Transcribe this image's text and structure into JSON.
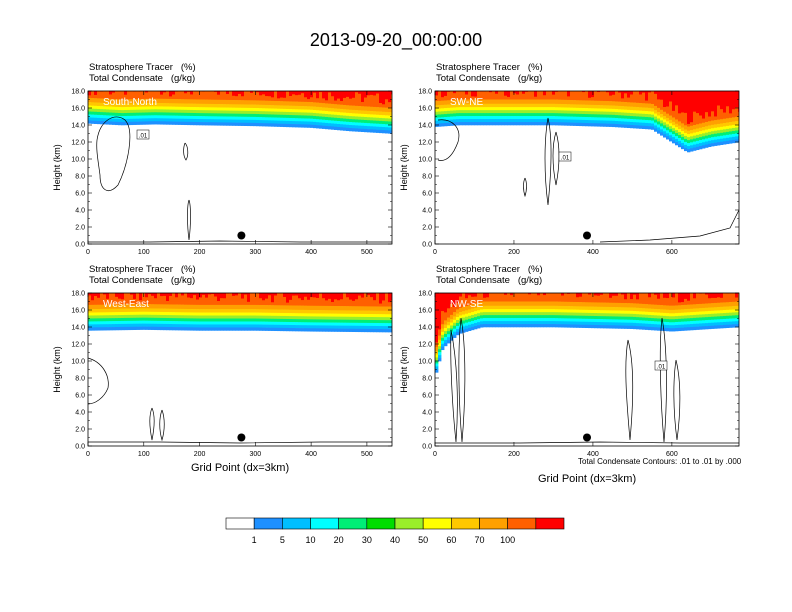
{
  "title": "2013-09-20_00:00:00",
  "colors": {
    "levels": [
      "#ffffff",
      "#1e90ff",
      "#00bfff",
      "#00ffff",
      "#00ee76",
      "#00dd00",
      "#9aee2a",
      "#ffff00",
      "#ffc800",
      "#ffa000",
      "#ff6000",
      "#ff0000"
    ]
  },
  "colorbar": {
    "labels": [
      "1",
      "5",
      "10",
      "20",
      "30",
      "40",
      "50",
      "60",
      "70",
      "100"
    ]
  },
  "chart_data": [
    {
      "type": "heatmap",
      "panel_label": "South-North",
      "header_line1": "Stratosphere Tracer   (%)",
      "header_line2": "Total Condensate   (g/kg)",
      "ylabel": "Height (km)",
      "xlabel": "",
      "xlim": [
        0,
        545
      ],
      "ylim": [
        0,
        18
      ],
      "xticks": [
        0,
        100,
        200,
        300,
        400,
        500
      ],
      "yticks": [
        "0.0",
        "2.0",
        "4.0",
        "6.0",
        "8.0",
        "10.0",
        "12.0",
        "14.0",
        "16.0",
        "18.0"
      ],
      "tracer_base_km": [
        [
          0,
          14.2
        ],
        [
          60,
          14.0
        ],
        [
          120,
          14.1
        ],
        [
          200,
          14.0
        ],
        [
          300,
          13.9
        ],
        [
          400,
          13.7
        ],
        [
          470,
          13.3
        ],
        [
          545,
          13.0
        ]
      ],
      "contour_label": ".01",
      "marker": [
        275,
        1.0
      ]
    },
    {
      "type": "heatmap",
      "panel_label": "SW-NE",
      "header_line1": "Stratosphere Tracer   (%)",
      "header_line2": "Total Condensate   (g/kg)",
      "ylabel": "Height (km)",
      "xlabel": "",
      "xlim": [
        0,
        770
      ],
      "ylim": [
        0,
        18
      ],
      "xticks": [
        0,
        200,
        400,
        600
      ],
      "yticks": [
        "0.0",
        "2.0",
        "4.0",
        "6.0",
        "8.0",
        "10.0",
        "12.0",
        "14.0",
        "16.0",
        "18.0"
      ],
      "tracer_base_km": [
        [
          0,
          13.8
        ],
        [
          60,
          14.0
        ],
        [
          200,
          14.0
        ],
        [
          300,
          14.0
        ],
        [
          450,
          13.8
        ],
        [
          550,
          13.5
        ],
        [
          600,
          12.0
        ],
        [
          640,
          10.8
        ],
        [
          700,
          11.5
        ],
        [
          770,
          12.0
        ]
      ],
      "contour_label": ".01",
      "marker": [
        385,
        1.0
      ]
    },
    {
      "type": "heatmap",
      "panel_label": "West-East",
      "header_line1": "Stratosphere Tracer   (%)",
      "header_line2": "Total Condensate   (g/kg)",
      "ylabel": "Height (km)",
      "xlabel": "Grid Point (dx=3km)",
      "xlim": [
        0,
        545
      ],
      "ylim": [
        0,
        18
      ],
      "xticks": [
        0,
        100,
        200,
        300,
        400,
        500
      ],
      "yticks": [
        "0.0",
        "2.0",
        "4.0",
        "6.0",
        "8.0",
        "10.0",
        "12.0",
        "14.0",
        "16.0",
        "18.0"
      ],
      "tracer_base_km": [
        [
          0,
          13.6
        ],
        [
          100,
          13.7
        ],
        [
          200,
          13.6
        ],
        [
          300,
          13.6
        ],
        [
          400,
          13.5
        ],
        [
          545,
          13.4
        ]
      ],
      "contour_label": "",
      "marker": [
        275,
        1.0
      ]
    },
    {
      "type": "heatmap",
      "panel_label": "NW-SE",
      "header_line1": "Stratosphere Tracer   (%)",
      "header_line2": "Total Condensate   (g/kg)",
      "ylabel": "Height (km)",
      "xlabel": "Grid Point (dx=3km)",
      "xlim": [
        0,
        770
      ],
      "ylim": [
        0,
        18
      ],
      "xticks": [
        0,
        200,
        400,
        600
      ],
      "yticks": [
        "0.0",
        "2.0",
        "4.0",
        "6.0",
        "8.0",
        "10.0",
        "12.0",
        "14.0",
        "16.0",
        "18.0"
      ],
      "tracer_base_km": [
        [
          0,
          8.0
        ],
        [
          20,
          11.5
        ],
        [
          60,
          13.2
        ],
        [
          120,
          14.0
        ],
        [
          300,
          14.0
        ],
        [
          500,
          13.8
        ],
        [
          600,
          13.5
        ],
        [
          700,
          13.8
        ],
        [
          770,
          14.0
        ]
      ],
      "contour_label": ".01",
      "note": "Total Condensate Contours: .01 to .01 by .000",
      "marker": [
        385,
        1.0
      ]
    }
  ]
}
